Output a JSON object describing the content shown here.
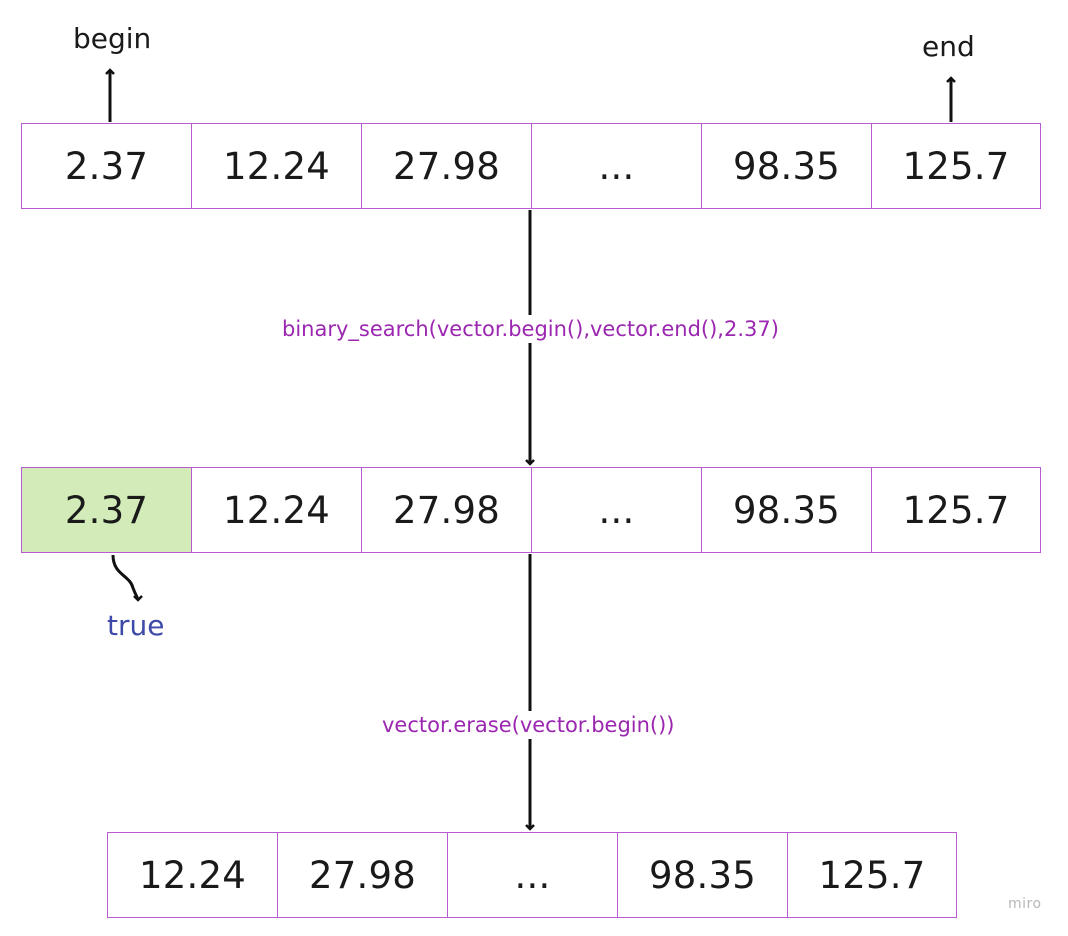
{
  "pointers": {
    "begin": "begin",
    "end": "end"
  },
  "arrays": {
    "initial": [
      "2.37",
      "12.24",
      "27.98",
      "...",
      "98.35",
      "125.7"
    ],
    "searched": [
      "2.37",
      "12.24",
      "27.98",
      "...",
      "98.35",
      "125.7"
    ],
    "erased": [
      "12.24",
      "27.98",
      "...",
      "98.35",
      "125.7"
    ]
  },
  "operations": {
    "search": "binary_search(vector.begin(),vector.end(),2.37)",
    "erase": "vector.erase(vector.begin())"
  },
  "result": "true",
  "watermark": "miro",
  "colors": {
    "cell_border": "#b65bd0",
    "found_fill": "#d2ebb8",
    "operation_text": "#9b27b0",
    "result_text": "#3e4aa8"
  }
}
